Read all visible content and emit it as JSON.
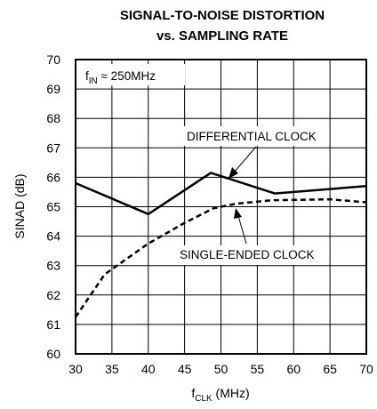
{
  "chart_data": {
    "type": "line",
    "title_line1": "SIGNAL-TO-NOISE DISTORTION",
    "title_line2": "vs. SAMPLING RATE",
    "xlabel_main": "f",
    "xlabel_sub": "CLK",
    "xlabel_unit": " (MHz)",
    "ylabel": "SINAD (dB)",
    "xlim": [
      30,
      70
    ],
    "ylim": [
      60,
      70
    ],
    "xticks": [
      30,
      35,
      40,
      45,
      50,
      55,
      60,
      65,
      70
    ],
    "yticks": [
      60,
      61,
      62,
      63,
      64,
      65,
      66,
      67,
      68,
      69,
      70
    ],
    "grid": true,
    "condition": {
      "main": "f",
      "sub": "IN",
      "rest": " ≈ 250MHz"
    },
    "side_id": "MAX1211 toc14",
    "series": [
      {
        "name": "DIFFERENTIAL CLOCK",
        "style": "solid",
        "x": [
          30,
          40,
          48.6,
          57.4,
          70
        ],
        "y": [
          65.8,
          64.75,
          66.15,
          65.45,
          65.7
        ]
      },
      {
        "name": "SINGLE-ENDED CLOCK",
        "style": "dashed",
        "x": [
          30,
          34,
          40,
          45,
          49,
          52,
          57,
          65,
          70
        ],
        "y": [
          61.25,
          62.7,
          63.75,
          64.45,
          64.95,
          65.1,
          65.22,
          65.25,
          65.15
        ]
      }
    ],
    "annotations": [
      {
        "text": "DIFFERENTIAL CLOCK",
        "series": 0
      },
      {
        "text": "SINGLE-ENDED CLOCK",
        "series": 1
      }
    ]
  }
}
